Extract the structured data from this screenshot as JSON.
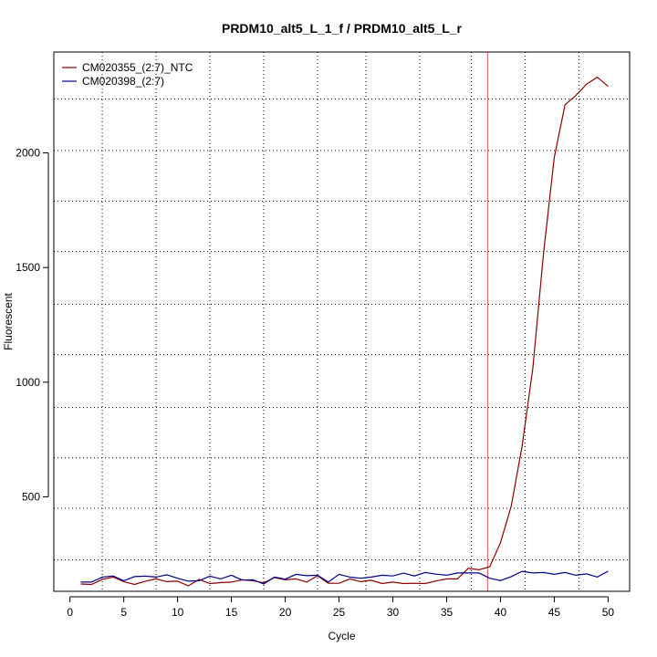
{
  "chart_data": {
    "type": "line",
    "title": "PRDM10_alt5_L_1_f / PRDM10_alt5_L_r",
    "xlabel": "Cycle",
    "ylabel": "Fluorescent",
    "xlim": [
      -1.5,
      52
    ],
    "ylim": [
      88,
      2440
    ],
    "x_ticks": [
      0,
      5,
      10,
      15,
      20,
      25,
      30,
      35,
      40,
      45,
      50
    ],
    "y_ticks": [
      500,
      1000,
      1500,
      2000
    ],
    "vertical_grid": [
      3,
      8,
      13,
      18,
      23,
      27.5,
      32.5,
      37.3,
      42.3,
      47.3
    ],
    "horizontal_grid": [
      225,
      450,
      670,
      890,
      1120,
      1340,
      1570,
      1790,
      2010,
      2235
    ],
    "threshold_line_x": 38.8,
    "threshold_color": "#cd5c5c",
    "grid": true,
    "legend_position": "top-left",
    "x": [
      1,
      2,
      3,
      4,
      5,
      6,
      7,
      8,
      9,
      10,
      11,
      12,
      13,
      14,
      15,
      16,
      17,
      18,
      19,
      20,
      21,
      22,
      23,
      24,
      25,
      26,
      27,
      28,
      29,
      30,
      31,
      32,
      33,
      34,
      35,
      36,
      37,
      38,
      39,
      40,
      41,
      42,
      43,
      44,
      45,
      46,
      47,
      48,
      49,
      50
    ],
    "series": [
      {
        "name": "CM020355_(2:7)_NTC",
        "color": "#8b0000",
        "values": [
          120,
          118,
          140,
          150,
          130,
          118,
          132,
          142,
          130,
          132,
          112,
          140,
          122,
          126,
          128,
          138,
          134,
          125,
          148,
          138,
          142,
          128,
          156,
          123,
          123,
          142,
          130,
          136,
          122,
          128,
          122,
          123,
          122,
          133,
          142,
          142,
          188,
          182,
          195,
          300,
          460,
          720,
          1060,
          1560,
          1980,
          2210,
          2250,
          2300,
          2330,
          2290
        ]
      },
      {
        "name": "CM020398_(2:7)",
        "color": "#00008b",
        "values": [
          128,
          128,
          150,
          155,
          134,
          152,
          154,
          150,
          160,
          145,
          132,
          134,
          154,
          142,
          158,
          137,
          138,
          120,
          150,
          141,
          162,
          156,
          158,
          128,
          162,
          150,
          145,
          150,
          158,
          155,
          167,
          155,
          170,
          163,
          158,
          168,
          168,
          168,
          145,
          135,
          152,
          175,
          168,
          170,
          162,
          170,
          158,
          164,
          150,
          176
        ]
      }
    ]
  }
}
